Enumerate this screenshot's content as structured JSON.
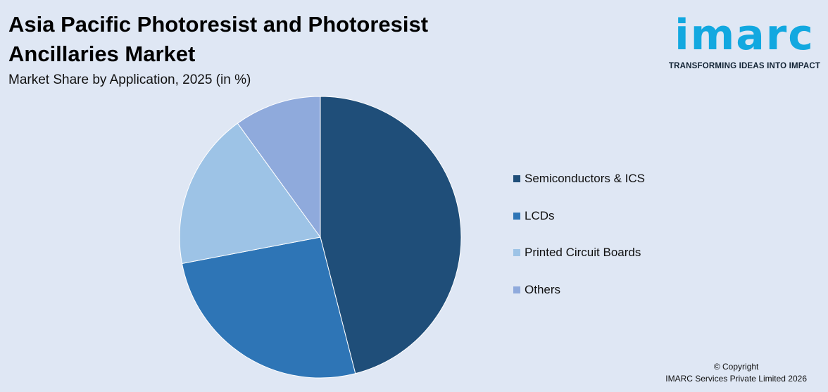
{
  "header": {
    "title": "Asia Pacific Photoresist and Photoresist Ancillaries Market",
    "subtitle": "Market Share by Application, 2025 (in %)"
  },
  "logo": {
    "wordmark": "imarc",
    "tagline": "TRANSFORMING IDEAS INTO IMPACT",
    "color": "#12a8e0"
  },
  "chart_data": {
    "type": "pie",
    "categories": [
      "Semiconductors & ICS",
      "LCDs",
      "Printed Circuit Boards",
      "Others"
    ],
    "values": [
      46,
      26,
      18,
      10
    ],
    "colors": [
      "#1f4e79",
      "#2e75b6",
      "#9dc3e6",
      "#8faadc"
    ],
    "legend_position": "right"
  },
  "footer": {
    "line1": "© Copyright",
    "line2": "IMARC Services Private Limited 2026"
  }
}
